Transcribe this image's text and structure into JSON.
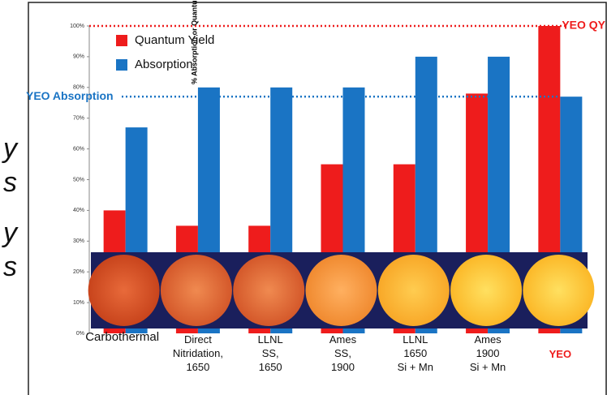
{
  "chart_data": {
    "type": "bar",
    "y_axis_label": "% Absorption or Quantum Yield",
    "categories": [
      "Carbothermal",
      "Direct\nNitridation,\n1650",
      "LLNL\nSS,\n1650",
      "Ames\nSS,\n1900",
      "LLNL\n1650\nSi + Mn",
      "Ames\n1900\nSi + Mn",
      "YEO"
    ],
    "series": [
      {
        "name": "Quantum Yield",
        "color": "#ee1c1c",
        "values": [
          40,
          35,
          35,
          55,
          55,
          78,
          100
        ]
      },
      {
        "name": "Absorption",
        "color": "#1a74c4",
        "values": [
          67,
          80,
          80,
          80,
          90,
          90,
          77
        ]
      }
    ],
    "ylim": [
      0,
      100
    ],
    "yticks": [
      {
        "value": 0,
        "label": "0%"
      },
      {
        "value": 10,
        "label": "10%"
      },
      {
        "value": 20,
        "label": "20%"
      },
      {
        "value": 30,
        "label": "30%"
      },
      {
        "value": 40,
        "label": "40%"
      },
      {
        "value": 50,
        "label": "50%"
      },
      {
        "value": 60,
        "label": "60%"
      },
      {
        "value": 70,
        "label": "70%"
      },
      {
        "value": 80,
        "label": "80%"
      },
      {
        "value": 90,
        "label": "90%"
      },
      {
        "value": 100,
        "label": "100%"
      }
    ],
    "reference_lines": [
      {
        "label": "YEO QY",
        "value": 100,
        "color": "#ee1c1c"
      },
      {
        "label": "YEO Absorption",
        "value": 77,
        "color": "#1a74c4"
      }
    ],
    "legend": "top-left",
    "side_text": [
      "y",
      "s",
      "y",
      "s"
    ]
  }
}
